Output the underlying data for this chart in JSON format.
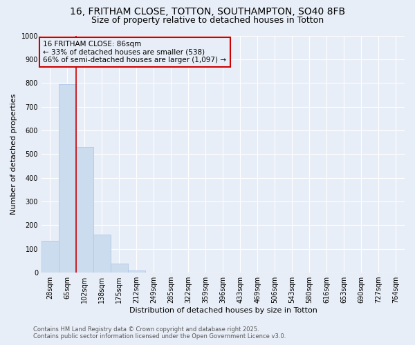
{
  "title_line1": "16, FRITHAM CLOSE, TOTTON, SOUTHAMPTON, SO40 8FB",
  "title_line2": "Size of property relative to detached houses in Totton",
  "xlabel": "Distribution of detached houses by size in Totton",
  "ylabel": "Number of detached properties",
  "bar_labels": [
    "28sqm",
    "65sqm",
    "102sqm",
    "138sqm",
    "175sqm",
    "212sqm",
    "249sqm",
    "285sqm",
    "322sqm",
    "359sqm",
    "396sqm",
    "433sqm",
    "469sqm",
    "506sqm",
    "543sqm",
    "580sqm",
    "616sqm",
    "653sqm",
    "690sqm",
    "727sqm",
    "764sqm"
  ],
  "bar_values": [
    135,
    795,
    530,
    160,
    38,
    10,
    0,
    0,
    0,
    0,
    0,
    0,
    0,
    0,
    0,
    0,
    0,
    0,
    0,
    0,
    0
  ],
  "bar_color": "#ccdcef",
  "bar_edge_color": "#aec8e8",
  "vline_x_index": 1.5,
  "vline_color": "#cc0000",
  "annotation_text": "16 FRITHAM CLOSE: 86sqm\n← 33% of detached houses are smaller (538)\n66% of semi-detached houses are larger (1,097) →",
  "annotation_fontsize": 7.5,
  "ylim": [
    0,
    1000
  ],
  "yticks": [
    0,
    100,
    200,
    300,
    400,
    500,
    600,
    700,
    800,
    900,
    1000
  ],
  "footer_line1": "Contains HM Land Registry data © Crown copyright and database right 2025.",
  "footer_line2": "Contains public sector information licensed under the Open Government Licence v3.0.",
  "bg_color": "#e8eef7",
  "plot_bg_color": "#e8eef7",
  "grid_color": "#ffffff",
  "title_fontsize": 10,
  "subtitle_fontsize": 9,
  "axis_label_fontsize": 8,
  "tick_fontsize": 7
}
